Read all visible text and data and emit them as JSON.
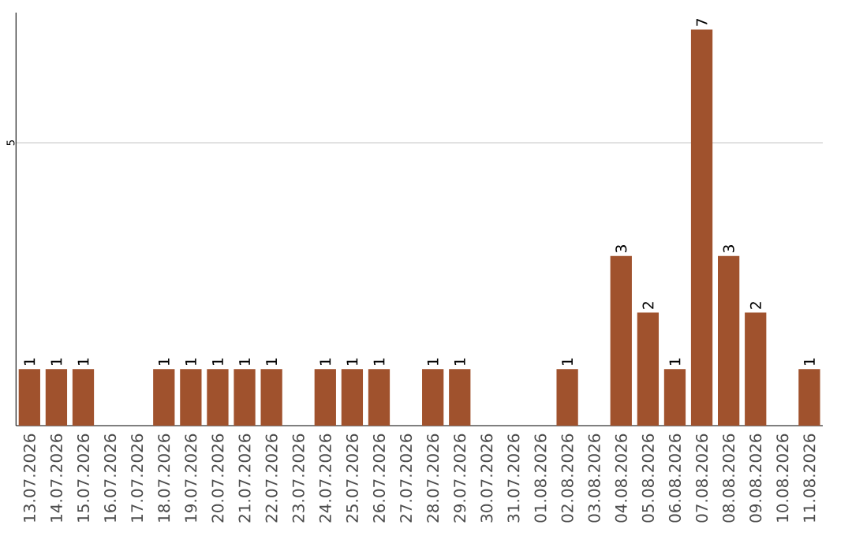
{
  "chart_data": {
    "type": "bar",
    "categories": [
      "13.07.2026",
      "14.07.2026",
      "15.07.2026",
      "16.07.2026",
      "17.07.2026",
      "18.07.2026",
      "19.07.2026",
      "20.07.2026",
      "21.07.2026",
      "22.07.2026",
      "23.07.2026",
      "24.07.2026",
      "25.07.2026",
      "26.07.2026",
      "27.07.2026",
      "28.07.2026",
      "29.07.2026",
      "30.07.2026",
      "31.07.2026",
      "01.08.2026",
      "02.08.2026",
      "03.08.2026",
      "04.08.2026",
      "05.08.2026",
      "06.08.2026",
      "07.08.2026",
      "08.08.2026",
      "09.08.2026",
      "10.08.2026",
      "11.08.2026"
    ],
    "values": [
      1,
      1,
      1,
      0,
      0,
      1,
      1,
      1,
      1,
      1,
      0,
      1,
      1,
      1,
      0,
      1,
      1,
      0,
      0,
      0,
      1,
      0,
      3,
      2,
      1,
      7,
      3,
      2,
      0,
      1
    ],
    "value_labels": [
      "1",
      "1",
      "1",
      null,
      null,
      "1",
      "1",
      "1",
      "1",
      "1",
      null,
      "1",
      "1",
      "1",
      null,
      "1",
      "1",
      null,
      null,
      null,
      "1",
      null,
      "3",
      "2",
      "1",
      "7",
      "3",
      "2",
      null,
      "1"
    ],
    "color": "#a0522d",
    "ylim": [
      0,
      7.3
    ],
    "yticks": [
      5
    ],
    "grid": "y"
  }
}
